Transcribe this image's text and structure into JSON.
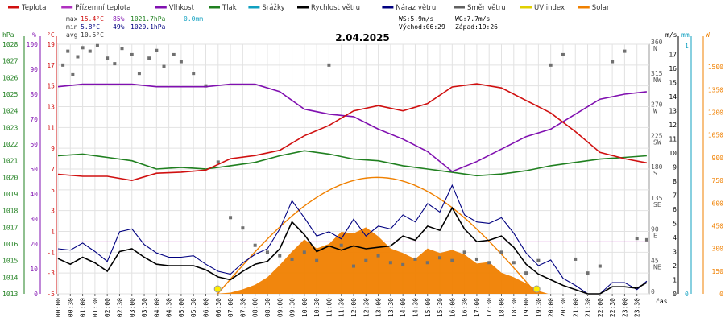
{
  "chart_data": {
    "type": "line",
    "title": "2.04.2025",
    "legend": [
      {
        "label": "Teplota",
        "color": "#d01010"
      },
      {
        "label": "Přízemní teplota",
        "color": "#b030c0"
      },
      {
        "label": "Vlhkost",
        "color": "#8010b0"
      },
      {
        "label": "Tlak",
        "color": "#208020"
      },
      {
        "label": "Srážky",
        "color": "#10a0c0"
      },
      {
        "label": "Rychlost větru",
        "color": "#000000"
      },
      {
        "label": "Náraz větru",
        "color": "#000080"
      },
      {
        "label": "Směr větru",
        "color": "#606060"
      },
      {
        "label": "UV index",
        "color": "#e0d000"
      },
      {
        "label": "Solar",
        "color": "#f08000"
      }
    ],
    "stats": {
      "max_label": "max",
      "min_label": "min",
      "avg_label": "avg",
      "max_temp": "15.4°C",
      "max_hum": "85%",
      "max_press": "1021.7hPa",
      "max_rain": "0.0mm",
      "min_temp": "5.8°C",
      "min_hum": "49%",
      "min_press": "1020.1hPa",
      "avg_temp": "10.5°C"
    },
    "info": {
      "ws": "WS:5.9m/s",
      "wg": "WG:7.7m/s",
      "sunrise": "Východ:06:29",
      "sunset": "Západ:19:26"
    },
    "axes": {
      "hpa_label": "hPa",
      "pct_label": "%",
      "deg_label": "°C",
      "ms_label": "m/s",
      "mm_label": "mm",
      "w_label": "W",
      "x_label": "čas",
      "hpa_ticks": [
        "1028",
        "1027",
        "1026",
        "1025",
        "1024",
        "1023",
        "1022",
        "1021",
        "1020",
        "1019",
        "1018",
        "1017",
        "1016",
        "1015",
        "1014",
        "1013"
      ],
      "pct_ticks": [
        "100",
        "90",
        "80",
        "70",
        "60",
        "50",
        "40",
        "30",
        "20",
        "10",
        "0"
      ],
      "deg_ticks": [
        "19",
        "17",
        "15",
        "13",
        "11",
        "9",
        "7",
        "5",
        "3",
        "1",
        "-1",
        "-3",
        "-5"
      ],
      "dir_ticks": [
        "360 N",
        "315 NW",
        "270 W",
        "225 SW",
        "180 S",
        "135 SE",
        "90 E",
        "45 NE",
        "0"
      ],
      "ms_ticks": [
        "17",
        "16",
        "15",
        "14",
        "13",
        "12",
        "11",
        "10",
        "9",
        "8",
        "7",
        "6",
        "5",
        "4",
        "3",
        "2",
        "1",
        "0"
      ],
      "mm_ticks": [
        "1",
        "0"
      ],
      "w_ticks": [
        "1500",
        "1350",
        "1200",
        "1050",
        "900",
        "750",
        "600",
        "450",
        "300",
        "150",
        "0"
      ],
      "time_ticks": [
        "00:00",
        "00:30",
        "01:00",
        "01:30",
        "02:00",
        "02:30",
        "03:00",
        "03:30",
        "04:00",
        "04:30",
        "05:00",
        "05:30",
        "06:00",
        "06:30",
        "07:00",
        "07:30",
        "08:00",
        "08:30",
        "09:00",
        "09:30",
        "10:00",
        "10:30",
        "11:00",
        "11:30",
        "12:00",
        "12:30",
        "13:00",
        "13:30",
        "14:00",
        "14:30",
        "15:00",
        "15:30",
        "16:00",
        "16:30",
        "17:00",
        "17:30",
        "18:00",
        "18:30",
        "19:00",
        "19:30",
        "20:00",
        "20:30",
        "21:00",
        "21:30",
        "22:00",
        "22:30",
        "23:00",
        "23:30"
      ]
    },
    "series": {
      "temperature_c": [
        [
          0,
          6.5
        ],
        [
          1,
          6.3
        ],
        [
          2,
          6.3
        ],
        [
          3,
          5.9
        ],
        [
          4,
          6.6
        ],
        [
          5,
          6.7
        ],
        [
          6,
          6.9
        ],
        [
          7,
          8.0
        ],
        [
          8,
          8.3
        ],
        [
          9,
          8.8
        ],
        [
          10,
          10.2
        ],
        [
          11,
          11.2
        ],
        [
          12,
          12.6
        ],
        [
          13,
          13.1
        ],
        [
          14,
          12.6
        ],
        [
          15,
          13.3
        ],
        [
          16,
          14.9
        ],
        [
          17,
          15.2
        ],
        [
          18,
          14.8
        ],
        [
          19,
          13.6
        ],
        [
          20,
          12.4
        ],
        [
          21,
          10.6
        ],
        [
          22,
          8.6
        ],
        [
          23,
          8.0
        ],
        [
          23.9,
          7.6
        ]
      ],
      "humidity_pct": [
        [
          0,
          83
        ],
        [
          1,
          84
        ],
        [
          2,
          84
        ],
        [
          3,
          84
        ],
        [
          4,
          83
        ],
        [
          5,
          83
        ],
        [
          6,
          83
        ],
        [
          7,
          84
        ],
        [
          8,
          84
        ],
        [
          9,
          81
        ],
        [
          10,
          74
        ],
        [
          11,
          72
        ],
        [
          12,
          71
        ],
        [
          13,
          66
        ],
        [
          14,
          62
        ],
        [
          15,
          57
        ],
        [
          16,
          49
        ],
        [
          17,
          53
        ],
        [
          18,
          58
        ],
        [
          19,
          63
        ],
        [
          20,
          66
        ],
        [
          21,
          72
        ],
        [
          22,
          78
        ],
        [
          23,
          80
        ],
        [
          23.9,
          81
        ]
      ],
      "pressure_hpa": [
        [
          0,
          1021.3
        ],
        [
          1,
          1021.4
        ],
        [
          2,
          1021.2
        ],
        [
          3,
          1021.0
        ],
        [
          4,
          1020.5
        ],
        [
          5,
          1020.6
        ],
        [
          6,
          1020.5
        ],
        [
          7,
          1020.7
        ],
        [
          8,
          1020.9
        ],
        [
          9,
          1021.3
        ],
        [
          10,
          1021.6
        ],
        [
          11,
          1021.4
        ],
        [
          12,
          1021.1
        ],
        [
          13,
          1021.0
        ],
        [
          14,
          1020.7
        ],
        [
          15,
          1020.5
        ],
        [
          16,
          1020.3
        ],
        [
          17,
          1020.1
        ],
        [
          18,
          1020.2
        ],
        [
          19,
          1020.4
        ],
        [
          20,
          1020.7
        ],
        [
          21,
          1020.9
        ],
        [
          22,
          1021.1
        ],
        [
          23,
          1021.2
        ],
        [
          23.9,
          1021.3
        ]
      ],
      "wind_speed_ms": [
        [
          0,
          2.5
        ],
        [
          0.5,
          2.1
        ],
        [
          1,
          2.6
        ],
        [
          1.5,
          2.2
        ],
        [
          2,
          1.6
        ],
        [
          2.5,
          3.0
        ],
        [
          3,
          3.2
        ],
        [
          3.5,
          2.6
        ],
        [
          4,
          2.1
        ],
        [
          4.5,
          2.0
        ],
        [
          5,
          2.0
        ],
        [
          5.5,
          2.0
        ],
        [
          6,
          1.7
        ],
        [
          6.5,
          1.2
        ],
        [
          7,
          1.0
        ],
        [
          7.5,
          1.6
        ],
        [
          8,
          2.1
        ],
        [
          8.5,
          2.3
        ],
        [
          9,
          3.2
        ],
        [
          9.5,
          5.1
        ],
        [
          10,
          4.2
        ],
        [
          10.5,
          3.0
        ],
        [
          11,
          3.4
        ],
        [
          11.5,
          3.1
        ],
        [
          12,
          3.4
        ],
        [
          12.5,
          3.2
        ],
        [
          13,
          3.3
        ],
        [
          13.5,
          3.4
        ],
        [
          14,
          4.1
        ],
        [
          14.5,
          3.8
        ],
        [
          15,
          4.8
        ],
        [
          15.5,
          4.5
        ],
        [
          16,
          6.1
        ],
        [
          16.5,
          4.6
        ],
        [
          17,
          3.7
        ],
        [
          17.5,
          3.8
        ],
        [
          18,
          4.1
        ],
        [
          18.5,
          3.3
        ],
        [
          19,
          2.1
        ],
        [
          19.5,
          1.4
        ],
        [
          20,
          1.0
        ],
        [
          20.5,
          0.6
        ],
        [
          21,
          0.3
        ],
        [
          21.5,
          0
        ],
        [
          22,
          0
        ],
        [
          22.5,
          0.5
        ],
        [
          23,
          0.5
        ],
        [
          23.5,
          0.4
        ],
        [
          23.9,
          0.8
        ]
      ],
      "wind_gust_ms": [
        [
          0,
          3.2
        ],
        [
          0.5,
          3.1
        ],
        [
          1,
          3.6
        ],
        [
          1.5,
          3.0
        ],
        [
          2,
          2.3
        ],
        [
          2.5,
          4.4
        ],
        [
          3,
          4.6
        ],
        [
          3.5,
          3.5
        ],
        [
          4,
          2.9
        ],
        [
          4.5,
          2.6
        ],
        [
          5,
          2.6
        ],
        [
          5.5,
          2.7
        ],
        [
          6,
          2.1
        ],
        [
          6.5,
          1.6
        ],
        [
          7,
          1.4
        ],
        [
          7.5,
          2.2
        ],
        [
          8,
          2.8
        ],
        [
          8.5,
          3.2
        ],
        [
          9,
          4.6
        ],
        [
          9.5,
          6.6
        ],
        [
          10,
          5.4
        ],
        [
          10.5,
          4.1
        ],
        [
          11,
          4.4
        ],
        [
          11.5,
          3.9
        ],
        [
          12,
          5.3
        ],
        [
          12.5,
          4.1
        ],
        [
          13,
          4.8
        ],
        [
          13.5,
          4.6
        ],
        [
          14,
          5.6
        ],
        [
          14.5,
          5.1
        ],
        [
          15,
          6.4
        ],
        [
          15.5,
          5.8
        ],
        [
          16,
          7.7
        ],
        [
          16.5,
          5.6
        ],
        [
          17,
          5.1
        ],
        [
          17.5,
          5.0
        ],
        [
          18,
          5.4
        ],
        [
          18.5,
          4.3
        ],
        [
          19,
          2.9
        ],
        [
          19.5,
          2.0
        ],
        [
          20,
          2.4
        ],
        [
          20.5,
          1.1
        ],
        [
          21,
          0.6
        ],
        [
          21.5,
          0
        ],
        [
          22,
          0
        ],
        [
          22.5,
          0.8
        ],
        [
          23,
          0.8
        ],
        [
          23.5,
          0.3
        ],
        [
          23.9,
          0.9
        ]
      ],
      "wind_dir_deg": [
        [
          0.2,
          330
        ],
        [
          0.4,
          350
        ],
        [
          0.6,
          316
        ],
        [
          0.8,
          342
        ],
        [
          1.0,
          355
        ],
        [
          1.3,
          350
        ],
        [
          1.6,
          358
        ],
        [
          2.0,
          340
        ],
        [
          2.3,
          332
        ],
        [
          2.6,
          354
        ],
        [
          3.0,
          345
        ],
        [
          3.3,
          318
        ],
        [
          3.7,
          340
        ],
        [
          4.0,
          351
        ],
        [
          4.3,
          328
        ],
        [
          4.7,
          345
        ],
        [
          5.0,
          335
        ],
        [
          5.5,
          318
        ],
        [
          6.0,
          300
        ],
        [
          6.5,
          190
        ],
        [
          7.0,
          110
        ],
        [
          7.5,
          95
        ],
        [
          8.0,
          70
        ],
        [
          8.5,
          60
        ],
        [
          9.0,
          55
        ],
        [
          9.5,
          50
        ],
        [
          10.0,
          60
        ],
        [
          10.5,
          48
        ],
        [
          11.0,
          330
        ],
        [
          11.5,
          70
        ],
        [
          12.0,
          40
        ],
        [
          12.5,
          48
        ],
        [
          13.0,
          55
        ],
        [
          13.5,
          45
        ],
        [
          14.0,
          42
        ],
        [
          14.5,
          50
        ],
        [
          15.0,
          45
        ],
        [
          15.5,
          52
        ],
        [
          16.0,
          48
        ],
        [
          16.5,
          60
        ],
        [
          17.0,
          50
        ],
        [
          17.5,
          45
        ],
        [
          18.0,
          60
        ],
        [
          18.5,
          45
        ],
        [
          19.0,
          30
        ],
        [
          19.5,
          48
        ],
        [
          20.0,
          330
        ],
        [
          20.5,
          345
        ],
        [
          21.0,
          50
        ],
        [
          21.5,
          30
        ],
        [
          22.0,
          40
        ],
        [
          22.5,
          335
        ],
        [
          23.0,
          350
        ],
        [
          23.5,
          80
        ],
        [
          23.9,
          78
        ]
      ],
      "solar_wm2": [
        [
          6.4,
          0
        ],
        [
          7,
          8
        ],
        [
          7.5,
          30
        ],
        [
          8,
          60
        ],
        [
          8.5,
          110
        ],
        [
          9,
          190
        ],
        [
          9.5,
          280
        ],
        [
          10,
          360
        ],
        [
          10.5,
          300
        ],
        [
          11,
          330
        ],
        [
          11.5,
          410
        ],
        [
          12,
          400
        ],
        [
          12.5,
          440
        ],
        [
          13,
          380
        ],
        [
          13.5,
          300
        ],
        [
          14,
          270
        ],
        [
          14.5,
          230
        ],
        [
          15,
          300
        ],
        [
          15.5,
          270
        ],
        [
          16,
          290
        ],
        [
          16.5,
          260
        ],
        [
          17,
          200
        ],
        [
          17.5,
          210
        ],
        [
          18,
          140
        ],
        [
          18.5,
          110
        ],
        [
          19,
          70
        ],
        [
          19.5,
          20
        ],
        [
          19.9,
          0
        ]
      ],
      "solar_theory_wm2": [
        [
          6.48,
          0
        ],
        [
          8,
          250
        ],
        [
          10,
          620
        ],
        [
          12.5,
          770
        ],
        [
          15,
          620
        ],
        [
          17,
          330
        ],
        [
          19.43,
          0
        ]
      ]
    }
  }
}
